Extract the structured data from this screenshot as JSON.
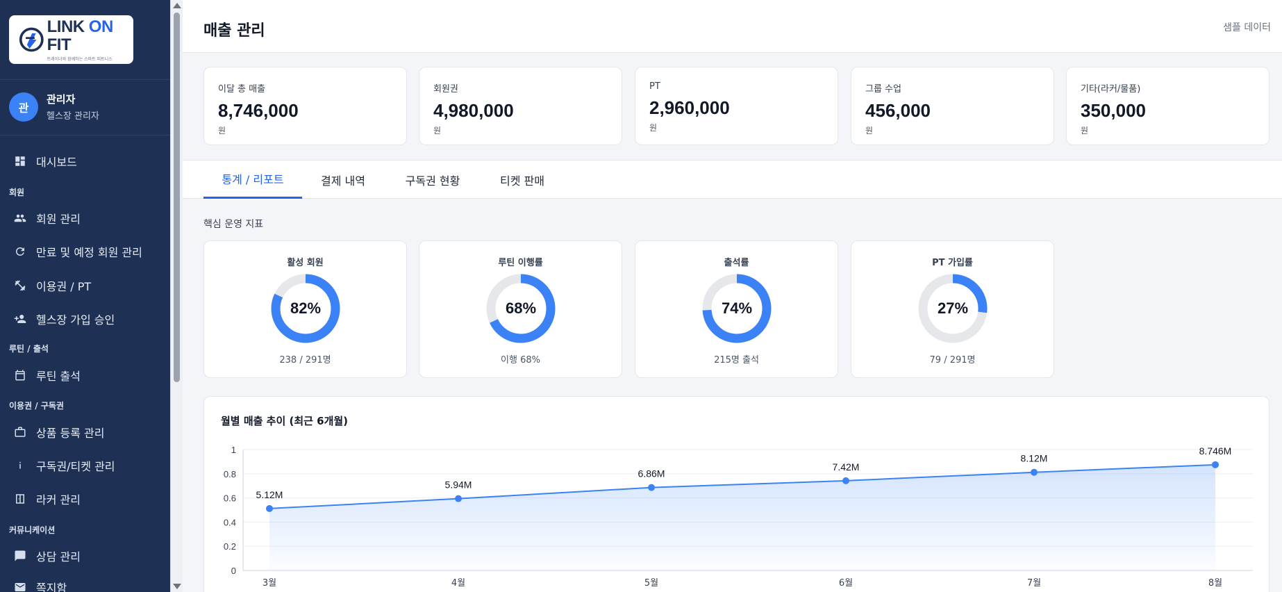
{
  "brand": {
    "logo_part1": "LINK ",
    "logo_part2": "ON",
    "logo_part3": " FIT",
    "tagline": "트레이너와 함께하는 스마트 피트니스"
  },
  "user": {
    "avatar_initial": "관",
    "name": "관리자",
    "role": "헬스장 관리자"
  },
  "sidebar": {
    "items": [
      {
        "label": "대시보드",
        "icon": "dashboard-icon"
      },
      {
        "section": "회원"
      },
      {
        "label": "회원 관리",
        "icon": "people-icon"
      },
      {
        "label": "만료 및 예정 회원 관리",
        "icon": "refresh-icon"
      },
      {
        "label": "이용권 / PT",
        "icon": "dumbbell-icon"
      },
      {
        "label": "헬스장 가입 승인",
        "icon": "person-add-icon"
      },
      {
        "section": "루틴 / 출석"
      },
      {
        "label": "루틴 출석",
        "icon": "calendar-icon"
      },
      {
        "section": "이용권 / 구독권"
      },
      {
        "label": "상품 등록 관리",
        "icon": "briefcase-icon"
      },
      {
        "label": "구독권/티켓 관리",
        "icon": "info-icon"
      },
      {
        "label": "라커 관리",
        "icon": "locker-icon"
      },
      {
        "section": "커뮤니케이션"
      },
      {
        "label": "상담 관리",
        "icon": "chat-icon"
      },
      {
        "label": "쪽지함",
        "icon": "mail-icon"
      }
    ]
  },
  "header": {
    "title": "매출 관리",
    "sample_label": "샘플 데이터"
  },
  "stats": [
    {
      "label": "이달 총 매출",
      "value": "8,746,000",
      "unit": "원"
    },
    {
      "label": "회원권",
      "value": "4,980,000",
      "unit": "원"
    },
    {
      "label": "PT",
      "value": "2,960,000",
      "unit": "원"
    },
    {
      "label": "그룹 수업",
      "value": "456,000",
      "unit": "원"
    },
    {
      "label": "기타(라커/물품)",
      "value": "350,000",
      "unit": "원"
    }
  ],
  "tabs": [
    {
      "label": "통계 / 리포트",
      "active": true
    },
    {
      "label": "결제 내역",
      "active": false
    },
    {
      "label": "구독권 현황",
      "active": false
    },
    {
      "label": "티켓 판매",
      "active": false
    }
  ],
  "kpi_section_title": "핵심 운영 지표",
  "kpis": [
    {
      "title": "활성 회원",
      "percent_label": "82%",
      "value": 82,
      "footer": "238 / 291명"
    },
    {
      "title": "루틴 이행률",
      "percent_label": "68%",
      "value": 68,
      "footer": "이행 68%"
    },
    {
      "title": "출석률",
      "percent_label": "74%",
      "value": 74,
      "footer": "215명 출석"
    },
    {
      "title": "PT 가입률",
      "percent_label": "27%",
      "value": 27,
      "footer": "79 / 291명"
    }
  ],
  "colors": {
    "accent": "#3b82f6",
    "sidebar_bg": "#1e3155",
    "ring_track": "#e5e7eb"
  },
  "chart_data": {
    "type": "area",
    "title": "월별 매출 추이 (최근 6개월)",
    "categories": [
      "3월",
      "4월",
      "5월",
      "6월",
      "7월",
      "8월"
    ],
    "values": [
      0.512,
      0.594,
      0.686,
      0.742,
      0.812,
      0.8746
    ],
    "data_labels": [
      "5.12M",
      "5.94M",
      "6.86M",
      "7.42M",
      "8.12M",
      "8.746M"
    ],
    "y_ticks": [
      "0",
      "0.2",
      "0.4",
      "0.6",
      "0.8",
      "1"
    ],
    "ylim": [
      0,
      1
    ],
    "grid": true,
    "xlabel": "",
    "ylabel": ""
  }
}
